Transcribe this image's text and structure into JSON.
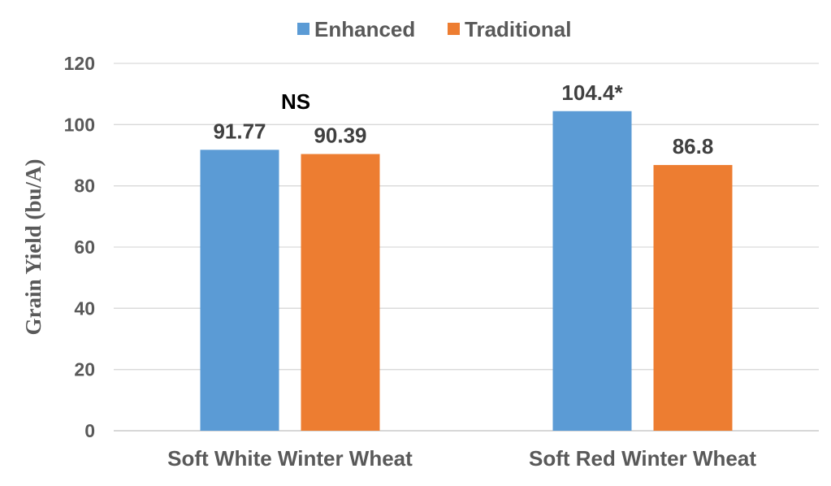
{
  "chart_data": {
    "type": "bar",
    "title": "",
    "xlabel": "",
    "ylabel": "Grain Yield (bu/A)",
    "ylim": [
      0,
      120
    ],
    "yticks": [
      0,
      20,
      40,
      60,
      80,
      100,
      120
    ],
    "grid": true,
    "legend_placement": "top",
    "categories": [
      "Soft White Winter Wheat",
      "Soft Red Winter Wheat"
    ],
    "series": [
      {
        "name": "Enhanced",
        "color": "#5B9BD5",
        "values": [
          91.77,
          104.4
        ],
        "labels": [
          "91.77",
          "104.4*"
        ]
      },
      {
        "name": "Traditional",
        "color": "#ED7D31",
        "values": [
          90.39,
          86.8
        ],
        "labels": [
          "90.39",
          "86.8"
        ]
      }
    ],
    "annotations": [
      {
        "text": "NS",
        "category": "Soft White Winter Wheat"
      }
    ]
  }
}
